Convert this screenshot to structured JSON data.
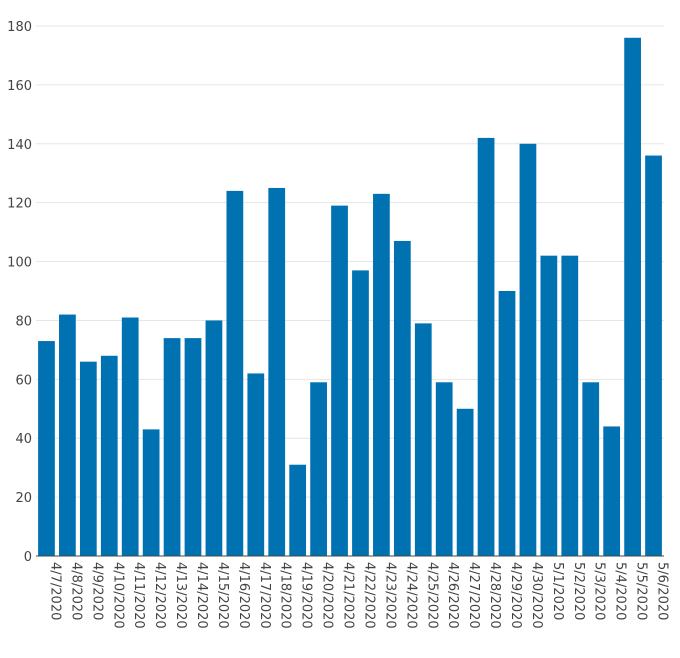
{
  "chart_data": {
    "type": "bar",
    "categories": [
      "4/7/2020",
      "4/8/2020",
      "4/9/2020",
      "4/10/2020",
      "4/11/2020",
      "4/12/2020",
      "4/13/2020",
      "4/14/2020",
      "4/15/2020",
      "4/16/2020",
      "4/17/2020",
      "4/18/2020",
      "4/19/2020",
      "4/20/2020",
      "4/21/2020",
      "4/22/2020",
      "4/23/2020",
      "4/24/2020",
      "4/25/2020",
      "4/26/2020",
      "4/27/2020",
      "4/28/2020",
      "4/29/2020",
      "4/30/2020",
      "5/1/2020",
      "5/2/2020",
      "5/3/2020",
      "5/4/2020",
      "5/5/2020",
      "5/6/2020"
    ],
    "values": [
      73,
      82,
      66,
      68,
      81,
      43,
      74,
      74,
      80,
      124,
      62,
      125,
      31,
      59,
      119,
      97,
      123,
      107,
      79,
      59,
      50,
      142,
      90,
      140,
      102,
      102,
      59,
      44,
      176,
      136
    ],
    "yticks": [
      0,
      20,
      40,
      60,
      80,
      100,
      120,
      140,
      160,
      180
    ],
    "ylim": [
      0,
      180
    ],
    "grid": true,
    "bar_color": "#0072b2",
    "title": "",
    "xlabel": "",
    "ylabel": ""
  }
}
